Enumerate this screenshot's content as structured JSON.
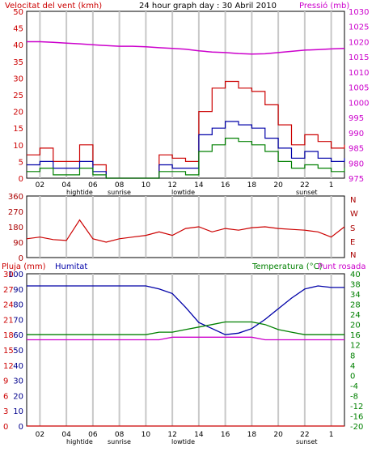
{
  "colors": {
    "frame": "#000000",
    "grid": "#c8c8c8",
    "red": "#cc0000",
    "blue": "#0000a8",
    "green": "#008000",
    "magenta": "#cc00cc",
    "darkred": "#aa0000",
    "navy": "#00008b",
    "bg": "#ffffff"
  },
  "header": {
    "wind_label": "Velocitat del vent (kmh)",
    "title": "24 hour graph day : 30 Abril 2010",
    "pressure_label": "Pressió (mb)"
  },
  "panel2": {
    "dir_letters": [
      "N",
      "W",
      "S",
      "E",
      "N"
    ]
  },
  "panel3": {
    "rain_label": "Pluja (mm)",
    "humidity_label": "Humitat",
    "temp_label": "Temperatura (°C)",
    "dew_label": "Punt rosada"
  },
  "time_axis": {
    "labels": [
      "02",
      "04",
      "06",
      "08",
      "10",
      "12",
      "14",
      "16",
      "18",
      "20",
      "22",
      "1"
    ],
    "events": [
      "hightide",
      "sunrise",
      "lowtide",
      "sunset"
    ]
  },
  "chart_data": [
    {
      "type": "line",
      "title": "24 hour graph day : 30 Abril 2010",
      "x_hours": [
        0,
        1,
        2,
        3,
        4,
        5,
        6,
        7,
        8,
        9,
        10,
        11,
        12,
        13,
        14,
        15,
        16,
        17,
        18,
        19,
        20,
        21,
        22,
        23,
        24
      ],
      "left_axis": {
        "label": "Velocitat del vent (kmh)",
        "ylim": [
          0,
          50
        ],
        "ticks": [
          "0",
          "5",
          "10",
          "15",
          "20",
          "25",
          "30",
          "35",
          "40",
          "45",
          "50"
        ]
      },
      "right_axis": {
        "label": "Pressió (mb)",
        "ylim": [
          975,
          1030
        ],
        "ticks": [
          "975",
          "980",
          "985",
          "990",
          "995",
          "1000",
          "1005",
          "1010",
          "1015",
          "1020",
          "1025",
          "1030"
        ]
      },
      "series": [
        {
          "name": "Pressió (mb)",
          "axis": "right",
          "values": [
            1020,
            1020,
            1019.8,
            1019.5,
            1019.3,
            1019,
            1018.7,
            1018.5,
            1018.5,
            1018.3,
            1018,
            1017.8,
            1017.5,
            1017,
            1016.6,
            1016.4,
            1016.1,
            1015.9,
            1016,
            1016.4,
            1016.8,
            1017.2,
            1017.4,
            1017.6,
            1017.8
          ]
        },
        {
          "name": "gust",
          "axis": "left",
          "values": [
            7,
            9,
            5,
            5,
            10,
            4,
            0,
            0,
            0,
            0,
            7,
            6,
            5,
            20,
            27,
            29,
            27,
            26,
            22,
            16,
            10,
            13,
            11,
            9,
            10
          ]
        },
        {
          "name": "average",
          "axis": "left",
          "values": [
            4,
            5,
            3,
            3,
            5,
            2,
            0,
            0,
            0,
            0,
            4,
            3,
            3,
            13,
            15,
            17,
            16,
            15,
            12,
            9,
            6,
            8,
            6,
            5,
            6
          ]
        },
        {
          "name": "low",
          "axis": "left",
          "values": [
            2,
            3,
            1,
            1,
            3,
            1,
            0,
            0,
            0,
            0,
            2,
            2,
            1,
            8,
            10,
            12,
            11,
            10,
            8,
            5,
            3,
            4,
            3,
            2,
            3
          ]
        }
      ]
    },
    {
      "type": "line",
      "left_axis": {
        "ylim": [
          0,
          360
        ],
        "ticks": [
          "0",
          "90",
          "180",
          "270",
          "360"
        ]
      },
      "series": [
        {
          "name": "direction",
          "values": [
            110,
            120,
            105,
            100,
            220,
            110,
            90,
            110,
            120,
            130,
            150,
            130,
            170,
            180,
            150,
            170,
            160,
            175,
            180,
            170,
            165,
            160,
            150,
            120,
            180
          ]
        }
      ]
    },
    {
      "type": "line",
      "axes": {
        "rain": {
          "label": "Pluja (mm)",
          "ylim": [
            0,
            30
          ],
          "ticks": [
            "0",
            "3",
            "6",
            "9",
            "12",
            "15",
            "18",
            "21",
            "24",
            "27",
            "30"
          ]
        },
        "humidity": {
          "label": "Humitat",
          "ylim": [
            0,
            100
          ],
          "ticks": [
            "0",
            "10",
            "20",
            "30",
            "40",
            "50",
            "60",
            "70",
            "80",
            "90",
            "100"
          ]
        },
        "temperature": {
          "label": "Temperatura (°C)",
          "ylim": [
            -20,
            40
          ],
          "ticks": [
            "-20",
            "-16",
            "-12",
            "-8",
            "-4",
            "0",
            "4",
            "8",
            "12",
            "16",
            "20",
            "24",
            "28",
            "34",
            "38",
            "40"
          ]
        }
      },
      "series": [
        {
          "name": "Humitat",
          "axis": "humidity",
          "values": [
            92,
            92,
            92,
            92,
            92,
            92,
            92,
            92,
            92,
            92,
            90,
            87,
            78,
            68,
            64,
            60,
            61,
            64,
            70,
            77,
            84,
            90,
            92,
            91,
            91
          ]
        },
        {
          "name": "Temperatura (°C)",
          "axis": "temperature",
          "values": [
            16,
            16,
            16,
            16,
            16,
            16,
            16,
            16,
            16,
            16,
            17,
            17,
            18,
            19,
            20,
            21,
            21,
            21,
            20,
            18,
            17,
            16,
            16,
            16,
            16
          ]
        },
        {
          "name": "Punt rosada",
          "axis": "temperature",
          "values": [
            14,
            14,
            14,
            14,
            14,
            14,
            14,
            14,
            14,
            14,
            14,
            15,
            15,
            15,
            15,
            15,
            15,
            15,
            14,
            14,
            14,
            14,
            14,
            14,
            14
          ]
        },
        {
          "name": "Pluja (mm)",
          "axis": "rain",
          "values": [
            0,
            0,
            0,
            0,
            0,
            0,
            0,
            0,
            0,
            0,
            0,
            0,
            0,
            0,
            0,
            0,
            0,
            0,
            0,
            0,
            0,
            0,
            0,
            0,
            0
          ]
        }
      ]
    }
  ]
}
